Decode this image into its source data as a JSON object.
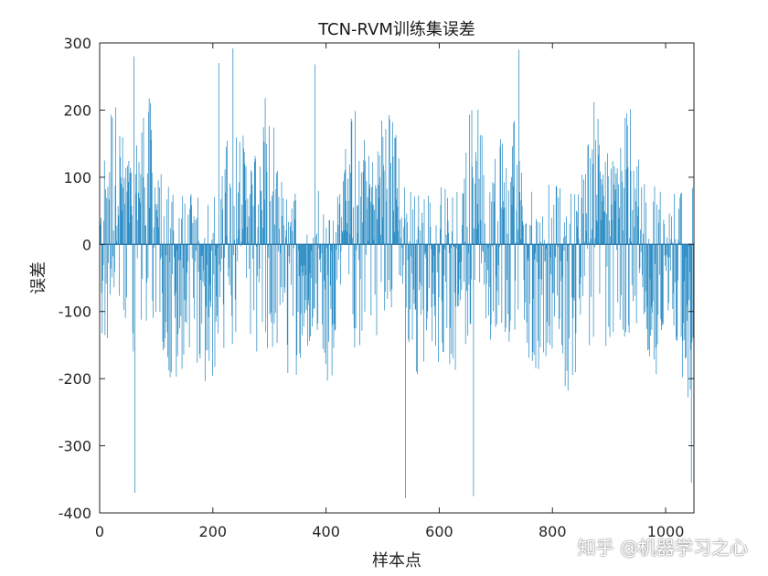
{
  "chart_data": {
    "type": "bar",
    "title": "TCN-RVM训练集误差",
    "xlabel": "样本点",
    "ylabel": "误差",
    "xlim": [
      0,
      1050
    ],
    "ylim": [
      -400,
      300
    ],
    "xticks": [
      0,
      200,
      400,
      600,
      800,
      1000
    ],
    "yticks": [
      -400,
      -300,
      -200,
      -100,
      0,
      100,
      200,
      300
    ],
    "xtick_labels": [
      "0",
      "200",
      "400",
      "600",
      "800",
      "1000"
    ],
    "ytick_labels": [
      "-400",
      "-300",
      "-200",
      "-100",
      "0",
      "100",
      "200",
      "300"
    ],
    "series_color": "#2b8cc4",
    "n_samples": 1050,
    "value_range": [
      -378,
      292
    ],
    "approximate_extremes": [
      {
        "x": 60,
        "y": 280
      },
      {
        "x": 62,
        "y": -370
      },
      {
        "x": 210,
        "y": 270
      },
      {
        "x": 235,
        "y": 292
      },
      {
        "x": 380,
        "y": 268
      },
      {
        "x": 540,
        "y": -378
      },
      {
        "x": 660,
        "y": -375
      },
      {
        "x": 740,
        "y": 290
      },
      {
        "x": 1045,
        "y": -355
      }
    ],
    "grid": false,
    "box": true
  },
  "watermark": "知乎 @机器学习之心"
}
